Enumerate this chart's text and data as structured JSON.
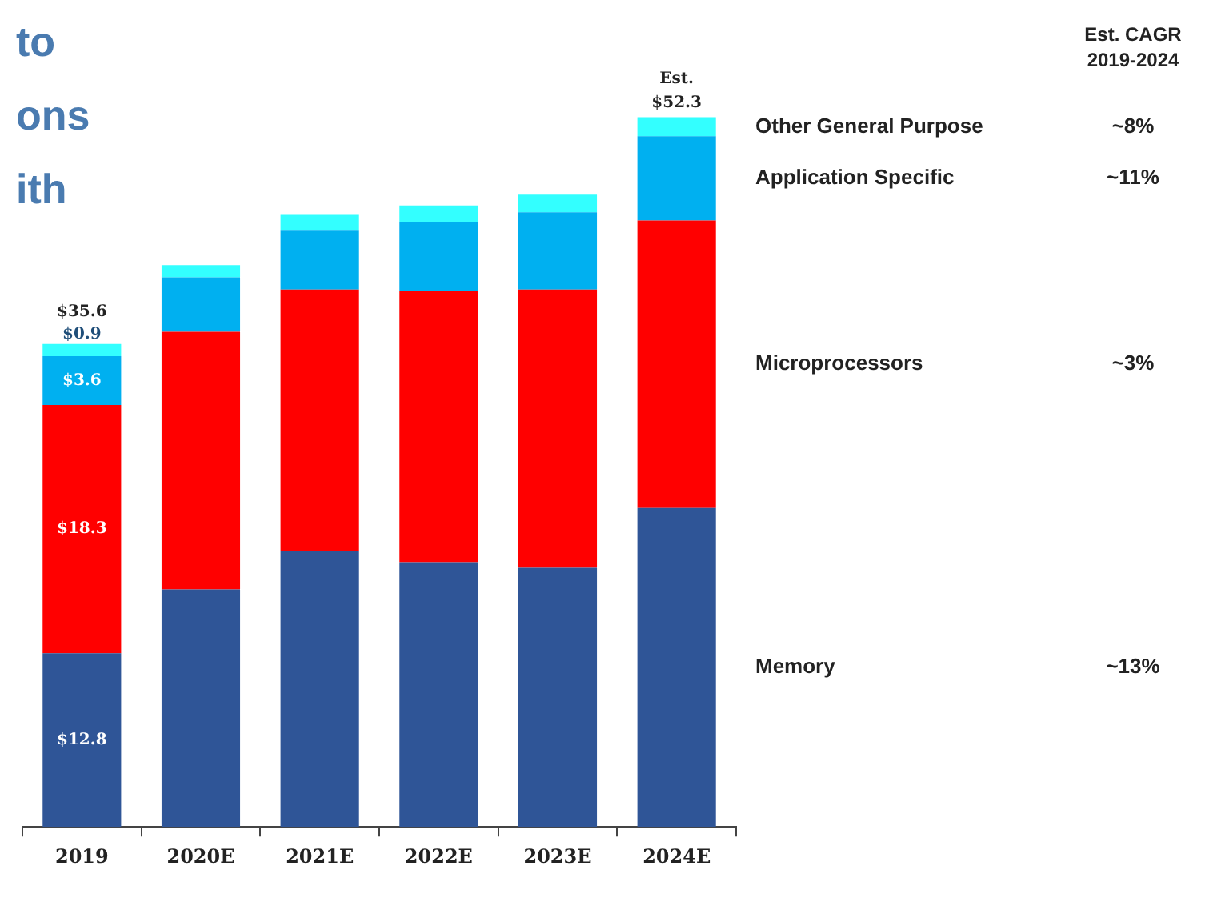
{
  "chart_data": {
    "type": "bar",
    "stacked": true,
    "categories": [
      "2019",
      "2020E",
      "2021E",
      "2022E",
      "2023E",
      "2024E"
    ],
    "series": [
      {
        "name": "Memory",
        "color": "#2f5597",
        "values": [
          12.8,
          17.5,
          20.3,
          19.5,
          19.1,
          23.5
        ],
        "value_labels": [
          "$12.8",
          null,
          null,
          null,
          null,
          null
        ]
      },
      {
        "name": "Microprocessors",
        "color": "#ff0000",
        "values": [
          18.3,
          19.0,
          19.3,
          20.0,
          20.5,
          21.2
        ],
        "value_labels": [
          "$18.3",
          null,
          null,
          null,
          null,
          null
        ]
      },
      {
        "name": "Application Specific",
        "color": "#00b0f0",
        "values": [
          3.6,
          4.0,
          4.4,
          5.1,
          5.7,
          6.2
        ],
        "value_labels": [
          "$3.6",
          null,
          null,
          null,
          null,
          null
        ]
      },
      {
        "name": "Other General Purpose",
        "color": "#33ffff",
        "values": [
          0.9,
          0.9,
          1.1,
          1.2,
          1.3,
          1.4
        ],
        "value_labels": [
          "$0.9",
          null,
          null,
          null,
          null,
          null
        ]
      }
    ],
    "totals": [
      "$35.6",
      null,
      null,
      null,
      null,
      "$52.3"
    ],
    "annotations": [
      "to",
      "ons",
      "ith",
      "Est. CAGR\n2019-2024",
      "~13%",
      "~3%",
      "~11%",
      "~8%",
      {
        "text": "Est.",
        "x": "2024E",
        "y": 52.3
      }
    ]
  }
}
